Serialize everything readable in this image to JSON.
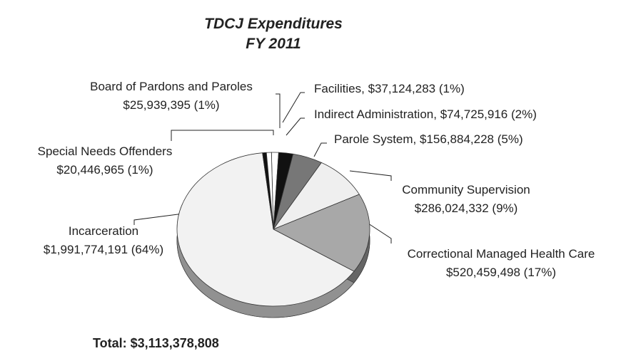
{
  "chart_data": {
    "type": "pie",
    "title": "TDCJ Expenditures",
    "subtitle": "FY 2011",
    "categories": [
      "Facilities",
      "Indirect Administration",
      "Parole System",
      "Community Supervision",
      "Correctional Managed Health Care",
      "Incarceration",
      "Special Needs Offenders",
      "Board of Pardons and Paroles"
    ],
    "values": [
      37124283,
      74725916,
      156884228,
      286024332,
      520459498,
      1991774191,
      20446965,
      25939395
    ],
    "value_labels": [
      ", $37,124,283 (1%)",
      ", $74,725,916 (2%)",
      ", $156,884,228 (5%)",
      "$286,024,332 (9%)",
      "$520,459,498 (17%)",
      "$1,991,774,191 (64%)",
      "$20,446,965 (1%)",
      "$25,939,395 (1%)"
    ],
    "colors": [
      "#ffffff",
      "#111111",
      "#777777",
      "#efefef",
      "#a8a8a8",
      "#f2f2f2",
      "#111111",
      "#ffffff"
    ],
    "total": "Total: $3,113,378,808"
  }
}
